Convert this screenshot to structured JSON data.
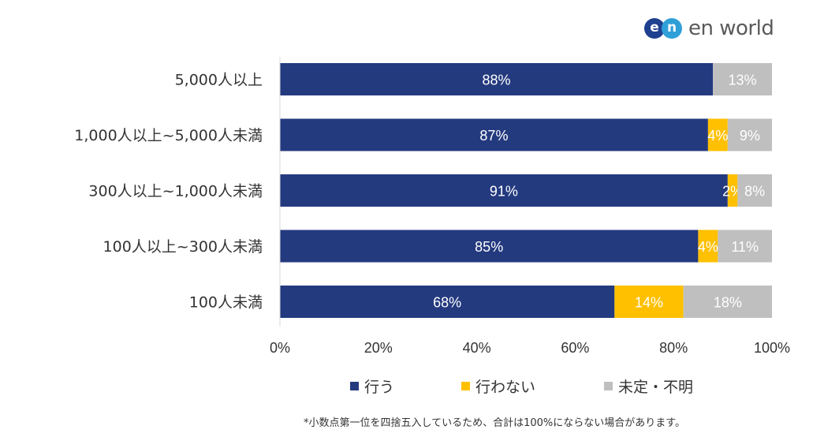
{
  "logo": {
    "mark_e": "e",
    "mark_n": "n",
    "text": "en world",
    "colors": {
      "e": "#1f3f8f",
      "n": "#2f9fd8"
    }
  },
  "chart_data": {
    "type": "bar",
    "orientation": "horizontal",
    "stacked": true,
    "categories": [
      "5,000人以上",
      "1,000人以上~5,000人未満",
      "300人以上~1,000人未満",
      "100人以上~300人未満",
      "100人未満"
    ],
    "series": [
      {
        "name": "行う",
        "color": "#243a7f",
        "values": [
          88,
          87,
          91,
          85,
          68
        ],
        "labels": [
          "88%",
          "87%",
          "91%",
          "85%",
          "68%"
        ],
        "label_color": "#ffffff"
      },
      {
        "name": "行わない",
        "color": "#ffc000",
        "values": [
          0,
          4,
          2,
          4,
          14
        ],
        "labels": [
          "",
          "4%",
          "2%",
          "4%",
          "14%"
        ],
        "label_color": "#ffffff"
      },
      {
        "name": "未定・不明",
        "color": "#bfbfbf",
        "values": [
          13,
          9,
          8,
          11,
          18
        ],
        "labels": [
          "13%",
          "9%",
          "8%",
          "11%",
          "18%"
        ],
        "label_color": "#ffffff"
      }
    ],
    "xlim": [
      0,
      100
    ],
    "xticks": [
      "0%",
      "20%",
      "40%",
      "60%",
      "80%",
      "100%"
    ],
    "grid": false,
    "legend_position": "bottom",
    "footnote": "*小数点第一位を四捨五入しているため、合計は100%にならない場合があります。"
  }
}
